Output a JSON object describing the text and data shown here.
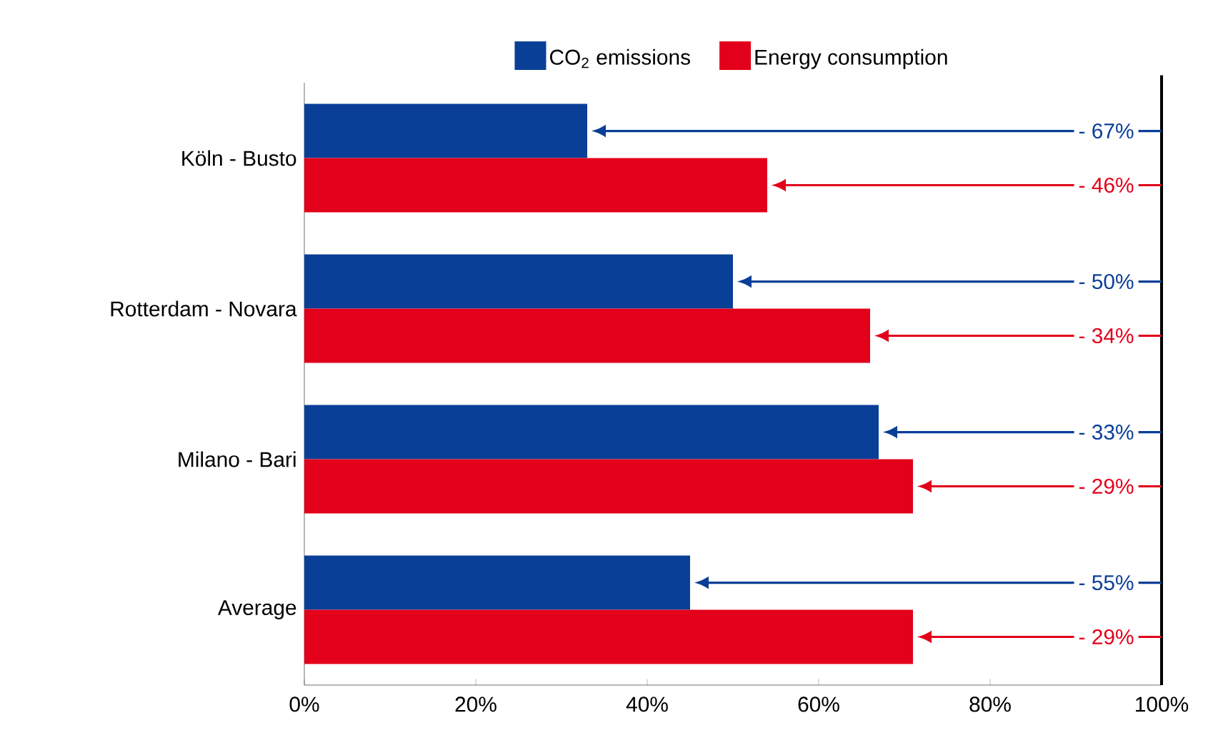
{
  "chart_data": {
    "type": "bar",
    "orientation": "horizontal",
    "categories": [
      "Köln - Busto",
      "Rotterdam - Novara",
      "Milano - Bari",
      "Average"
    ],
    "series": [
      {
        "name": "CO$_{2}$ emissions",
        "color": "#0a3f97",
        "values": [
          33,
          50,
          67,
          45
        ]
      },
      {
        "name": "Energy consumption",
        "color": "#e2001a",
        "values": [
          54,
          66,
          71,
          71
        ]
      }
    ],
    "xlim": [
      0,
      100
    ],
    "xticks": [
      {
        "value": 0,
        "label": "0%"
      },
      {
        "value": 20,
        "label": "20%"
      },
      {
        "value": 40,
        "label": "40%"
      },
      {
        "value": 60,
        "label": "60%"
      },
      {
        "value": 80,
        "label": "80%"
      },
      {
        "value": 100,
        "label": "100%"
      }
    ],
    "ref_lines": [
      {
        "axis": "x",
        "value": 100,
        "color": "#000000"
      }
    ],
    "annotations": [
      "- 67%",
      "- 46%",
      "- 50%",
      "- 34%",
      "- 33%",
      "- 29%",
      "- 55%",
      "- 29%"
    ],
    "legend": "top",
    "grid": false
  }
}
